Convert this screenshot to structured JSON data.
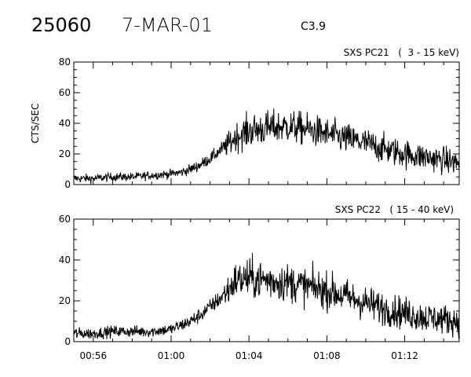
{
  "header": {
    "event_number": "25060",
    "date": "7-MAR-01",
    "flare_class": "C3.9"
  },
  "chart_data": [
    {
      "type": "line",
      "title": "SXS PC21   (  3 - 15 keV)",
      "xlabel": "",
      "ylabel": "CTS/SEC",
      "xlim_minutes": [
        55.0,
        74.8
      ],
      "ylim": [
        0,
        80
      ],
      "yticks": [
        "0",
        "20",
        "40",
        "60",
        "80"
      ],
      "xticks": [
        {
          "t": 56,
          "label": ""
        },
        {
          "t": 60,
          "label": ""
        },
        {
          "t": 64,
          "label": ""
        },
        {
          "t": 68,
          "label": ""
        },
        {
          "t": 72,
          "label": ""
        }
      ],
      "series": [
        {
          "profile": [
            [
              55.0,
              4
            ],
            [
              56.0,
              4
            ],
            [
              57.0,
              5
            ],
            [
              58.0,
              5
            ],
            [
              59.0,
              6
            ],
            [
              60.0,
              7
            ],
            [
              60.5,
              8
            ],
            [
              61.0,
              10
            ],
            [
              61.5,
              13
            ],
            [
              62.0,
              17
            ],
            [
              62.5,
              22
            ],
            [
              63.0,
              27
            ],
            [
              63.3,
              31
            ],
            [
              64.0,
              35
            ],
            [
              65.0,
              37
            ],
            [
              66.0,
              38
            ],
            [
              67.0,
              36
            ],
            [
              68.0,
              33
            ],
            [
              69.0,
              30
            ],
            [
              70.0,
              27
            ],
            [
              71.0,
              23
            ],
            [
              72.0,
              20
            ],
            [
              73.0,
              18
            ],
            [
              74.0,
              16
            ],
            [
              74.8,
              14
            ]
          ],
          "noise": [
            [
              55.0,
              2
            ],
            [
              60.0,
              2
            ],
            [
              62.5,
              3
            ],
            [
              63.0,
              6
            ],
            [
              64.0,
              8
            ],
            [
              70.0,
              7
            ],
            [
              74.8,
              6
            ]
          ]
        }
      ]
    },
    {
      "type": "line",
      "title": "SXS PC22   ( 15 - 40 keV)",
      "xlabel": "",
      "ylabel": "",
      "xlim_minutes": [
        55.0,
        74.8
      ],
      "ylim": [
        0,
        60
      ],
      "yticks": [
        "0",
        "20",
        "40",
        "60"
      ],
      "xticks": [
        {
          "t": 56,
          "label": "00:56"
        },
        {
          "t": 60,
          "label": "01:00"
        },
        {
          "t": 64,
          "label": "01:04"
        },
        {
          "t": 68,
          "label": "01:08"
        },
        {
          "t": 72,
          "label": "01:12"
        }
      ],
      "series": [
        {
          "profile": [
            [
              55.0,
              4
            ],
            [
              56.0,
              4
            ],
            [
              57.0,
              5
            ],
            [
              58.0,
              5
            ],
            [
              59.0,
              5
            ],
            [
              60.0,
              6
            ],
            [
              60.5,
              8
            ],
            [
              61.0,
              10
            ],
            [
              61.5,
              13
            ],
            [
              62.0,
              17
            ],
            [
              62.5,
              21
            ],
            [
              63.0,
              26
            ],
            [
              63.3,
              30
            ],
            [
              64.0,
              31
            ],
            [
              65.0,
              30
            ],
            [
              66.0,
              29
            ],
            [
              67.0,
              27
            ],
            [
              68.0,
              25
            ],
            [
              69.0,
              22
            ],
            [
              70.0,
              19
            ],
            [
              71.0,
              16
            ],
            [
              72.0,
              14
            ],
            [
              73.0,
              12
            ],
            [
              74.0,
              11
            ],
            [
              74.8,
              10
            ]
          ],
          "noise": [
            [
              55.0,
              2
            ],
            [
              60.0,
              2
            ],
            [
              62.5,
              3
            ],
            [
              63.0,
              6
            ],
            [
              64.0,
              7
            ],
            [
              70.0,
              6
            ],
            [
              74.8,
              5
            ]
          ]
        }
      ]
    }
  ]
}
